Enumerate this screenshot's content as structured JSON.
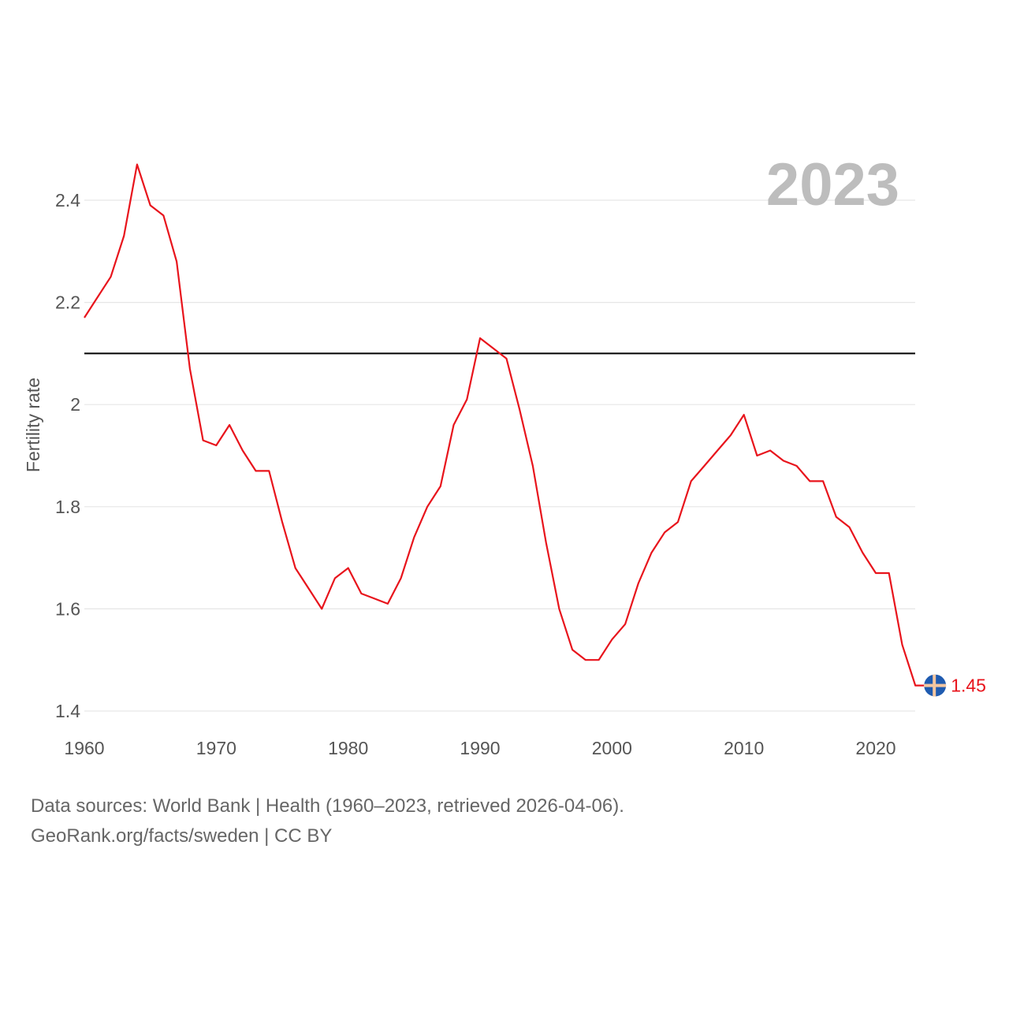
{
  "chart_data": {
    "type": "line",
    "title": "",
    "ylabel": "Fertility rate",
    "xlabel": "",
    "year_label": "2023",
    "xlim": [
      1960,
      2023
    ],
    "ylim": [
      1.4,
      2.4
    ],
    "x_ticks": [
      1960,
      1970,
      1980,
      1990,
      2000,
      2010,
      2020
    ],
    "y_ticks": [
      1.4,
      1.6,
      1.8,
      2.0,
      2.2,
      2.4
    ],
    "y_tick_labels": [
      "1.4",
      "1.6",
      "1.8",
      "2",
      "2.2",
      "2.4"
    ],
    "reference_line": 2.1,
    "series": [
      {
        "name": "Sweden",
        "color": "#e8141c",
        "end_label": "1.45",
        "x": [
          1960,
          1961,
          1962,
          1963,
          1964,
          1965,
          1966,
          1967,
          1968,
          1969,
          1970,
          1971,
          1972,
          1973,
          1974,
          1975,
          1976,
          1977,
          1978,
          1979,
          1980,
          1981,
          1982,
          1983,
          1984,
          1985,
          1986,
          1987,
          1988,
          1989,
          1990,
          1991,
          1992,
          1993,
          1994,
          1995,
          1996,
          1997,
          1998,
          1999,
          2000,
          2001,
          2002,
          2003,
          2004,
          2005,
          2006,
          2007,
          2008,
          2009,
          2010,
          2011,
          2012,
          2013,
          2014,
          2015,
          2016,
          2017,
          2018,
          2019,
          2020,
          2021,
          2022,
          2023
        ],
        "values": [
          2.17,
          2.21,
          2.25,
          2.33,
          2.47,
          2.39,
          2.37,
          2.28,
          2.07,
          1.93,
          1.92,
          1.96,
          1.91,
          1.87,
          1.87,
          1.77,
          1.68,
          1.64,
          1.6,
          1.66,
          1.68,
          1.63,
          1.62,
          1.61,
          1.66,
          1.74,
          1.8,
          1.84,
          1.96,
          2.01,
          2.13,
          2.11,
          2.09,
          1.99,
          1.88,
          1.73,
          1.6,
          1.52,
          1.5,
          1.5,
          1.54,
          1.57,
          1.65,
          1.71,
          1.75,
          1.77,
          1.85,
          1.88,
          1.91,
          1.94,
          1.98,
          1.9,
          1.91,
          1.89,
          1.88,
          1.85,
          1.85,
          1.78,
          1.76,
          1.71,
          1.67,
          1.67,
          1.53,
          1.45
        ]
      }
    ]
  },
  "footer": {
    "line1": "Data sources: World Bank | Health (1960–2023, retrieved 2026-04-06).",
    "line2": "GeoRank.org/facts/sweden | CC BY"
  },
  "colors": {
    "line": "#e8141c",
    "reference": "#000000",
    "grid": "#e6e6e6",
    "flag_blue": "#1f5bb0",
    "flag_cross": "#f3c6a0"
  },
  "marker_icon": "sweden-flag-icon"
}
